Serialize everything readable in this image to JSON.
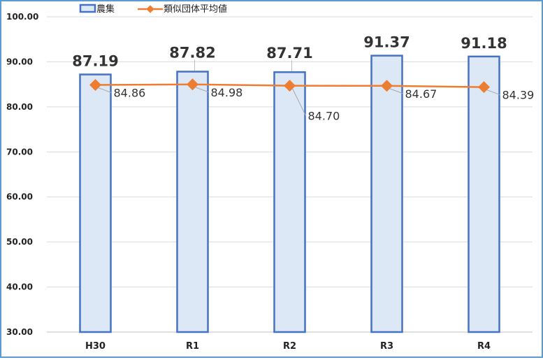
{
  "chart_data": {
    "type": "bar",
    "categories": [
      "H30",
      "R1",
      "R2",
      "R3",
      "R4"
    ],
    "series": [
      {
        "name": "農集",
        "type": "bar",
        "values": [
          87.19,
          87.82,
          87.71,
          91.37,
          91.18
        ],
        "labels": [
          "87.19",
          "87.82",
          "87.71",
          "91.37",
          "91.18"
        ],
        "color": "#4472c4",
        "fill": "#dde8f6"
      },
      {
        "name": "類似団体平均値",
        "type": "line",
        "values": [
          84.86,
          84.98,
          84.7,
          84.67,
          84.39
        ],
        "labels": [
          "84.86",
          "84.98",
          "84.70",
          "84.67",
          "84.39"
        ],
        "color": "#ed7d31"
      }
    ],
    "ylim": [
      30,
      100
    ],
    "yticks": [
      "30.00",
      "40.00",
      "50.00",
      "60.00",
      "70.00",
      "80.00",
      "90.00",
      "100.00"
    ],
    "legend_position": "top-left",
    "grid": true
  }
}
